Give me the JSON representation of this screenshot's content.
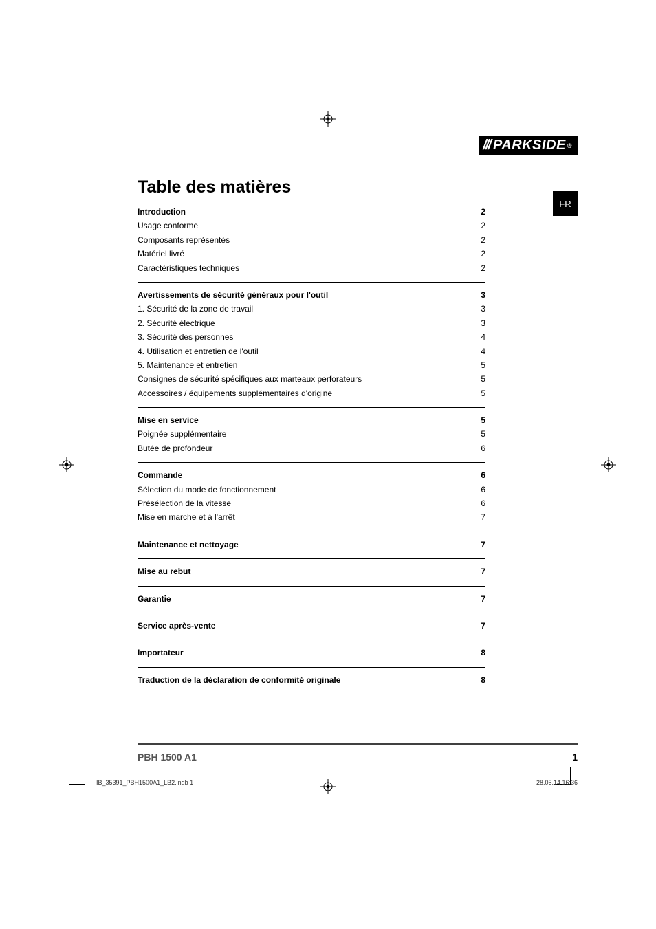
{
  "brand": "PARKSIDE",
  "language_tab": "FR",
  "title": "Table des matières",
  "sections": [
    {
      "ruled": false,
      "heading": {
        "label": "Introduction",
        "page": "2"
      },
      "items": [
        {
          "label": "Usage conforme",
          "page": "2"
        },
        {
          "label": "Composants représentés",
          "page": "2"
        },
        {
          "label": "Matériel livré",
          "page": "2"
        },
        {
          "label": "Caractéristiques techniques",
          "page": "2"
        }
      ]
    },
    {
      "ruled": true,
      "heading": {
        "label": "Avertissements de sécurité généraux pour l'outil",
        "page": "3"
      },
      "items": [
        {
          "label": "1. Sécurité de la zone de travail",
          "page": "3"
        },
        {
          "label": "2. Sécurité électrique",
          "page": "3"
        },
        {
          "label": "3. Sécurité des personnes",
          "page": "4"
        },
        {
          "label": "4. Utilisation et entretien de l'outil",
          "page": "4"
        },
        {
          "label": "5. Maintenance et entretien",
          "page": "5"
        },
        {
          "label": "Consignes de sécurité spécifiques aux marteaux perforateurs",
          "page": "5"
        },
        {
          "label": "Accessoires / équipements supplémentaires d'origine",
          "page": "5"
        }
      ]
    },
    {
      "ruled": true,
      "heading": {
        "label": "Mise en service",
        "page": "5"
      },
      "items": [
        {
          "label": "Poignée supplémentaire",
          "page": "5"
        },
        {
          "label": "Butée de profondeur",
          "page": "6"
        }
      ]
    },
    {
      "ruled": true,
      "heading": {
        "label": "Commande",
        "page": "6"
      },
      "items": [
        {
          "label": "Sélection du mode de fonctionnement",
          "page": "6"
        },
        {
          "label": "Présélection de la vitesse",
          "page": "6"
        },
        {
          "label": "Mise en marche et à l'arrêt",
          "page": "7"
        }
      ]
    },
    {
      "ruled": true,
      "heading": {
        "label": "Maintenance et nettoyage",
        "page": "7"
      },
      "items": []
    },
    {
      "ruled": true,
      "heading": {
        "label": "Mise au rebut",
        "page": "7"
      },
      "items": []
    },
    {
      "ruled": true,
      "heading": {
        "label": "Garantie",
        "page": "7"
      },
      "items": []
    },
    {
      "ruled": true,
      "heading": {
        "label": "Service après-vente",
        "page": "7"
      },
      "items": []
    },
    {
      "ruled": true,
      "heading": {
        "label": "Importateur",
        "page": "8"
      },
      "items": []
    },
    {
      "ruled": true,
      "heading": {
        "label": "Traduction de la déclaration de conformité originale",
        "page": "8"
      },
      "items": []
    }
  ],
  "footer": {
    "model": "PBH 1500 A1",
    "page_number": "1"
  },
  "imprint": {
    "file": "IB_35391_PBH1500A1_LB2.indb   1",
    "timestamp": "28.05.14   16:36"
  },
  "colors": {
    "text": "#000000",
    "rule": "#000000",
    "footer_rule": "#404040",
    "footer_model": "#555555",
    "background": "#ffffff"
  }
}
